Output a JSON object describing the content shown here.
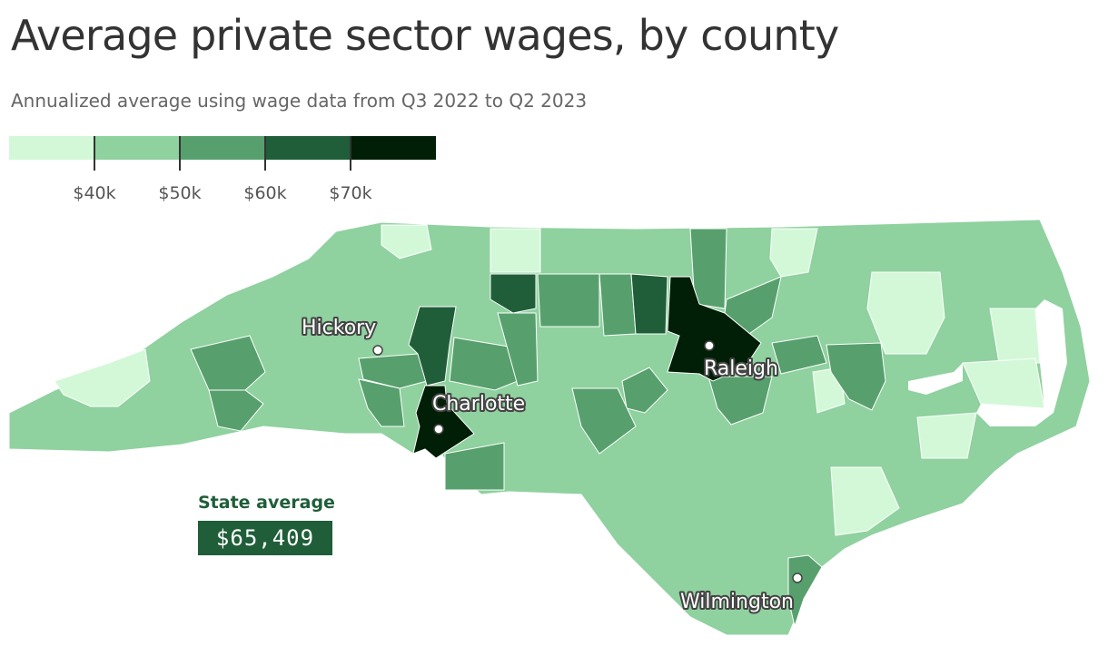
{
  "title": "Average private sector wages, by county",
  "subtitle": "Annualized average using wage data from Q3 2022 to Q2 2023",
  "legend": {
    "colors": [
      "#d3f8d8",
      "#8fd19f",
      "#57a06d",
      "#1f5e39",
      "#001f06"
    ],
    "ticks": [
      "$40k",
      "$50k",
      "$60k",
      "$70k"
    ]
  },
  "state_average": {
    "label": "State average",
    "value": "$65,409"
  },
  "cities": [
    {
      "name": "Hickory"
    },
    {
      "name": "Charlotte"
    },
    {
      "name": "Raleigh"
    },
    {
      "name": "Wilmington"
    }
  ],
  "colors": {
    "base": "#8fd19f",
    "light": "#d3f8d8",
    "mid": "#57a06d",
    "dark": "#1f5e39",
    "darkest": "#001f06",
    "water": "#ffffff"
  }
}
